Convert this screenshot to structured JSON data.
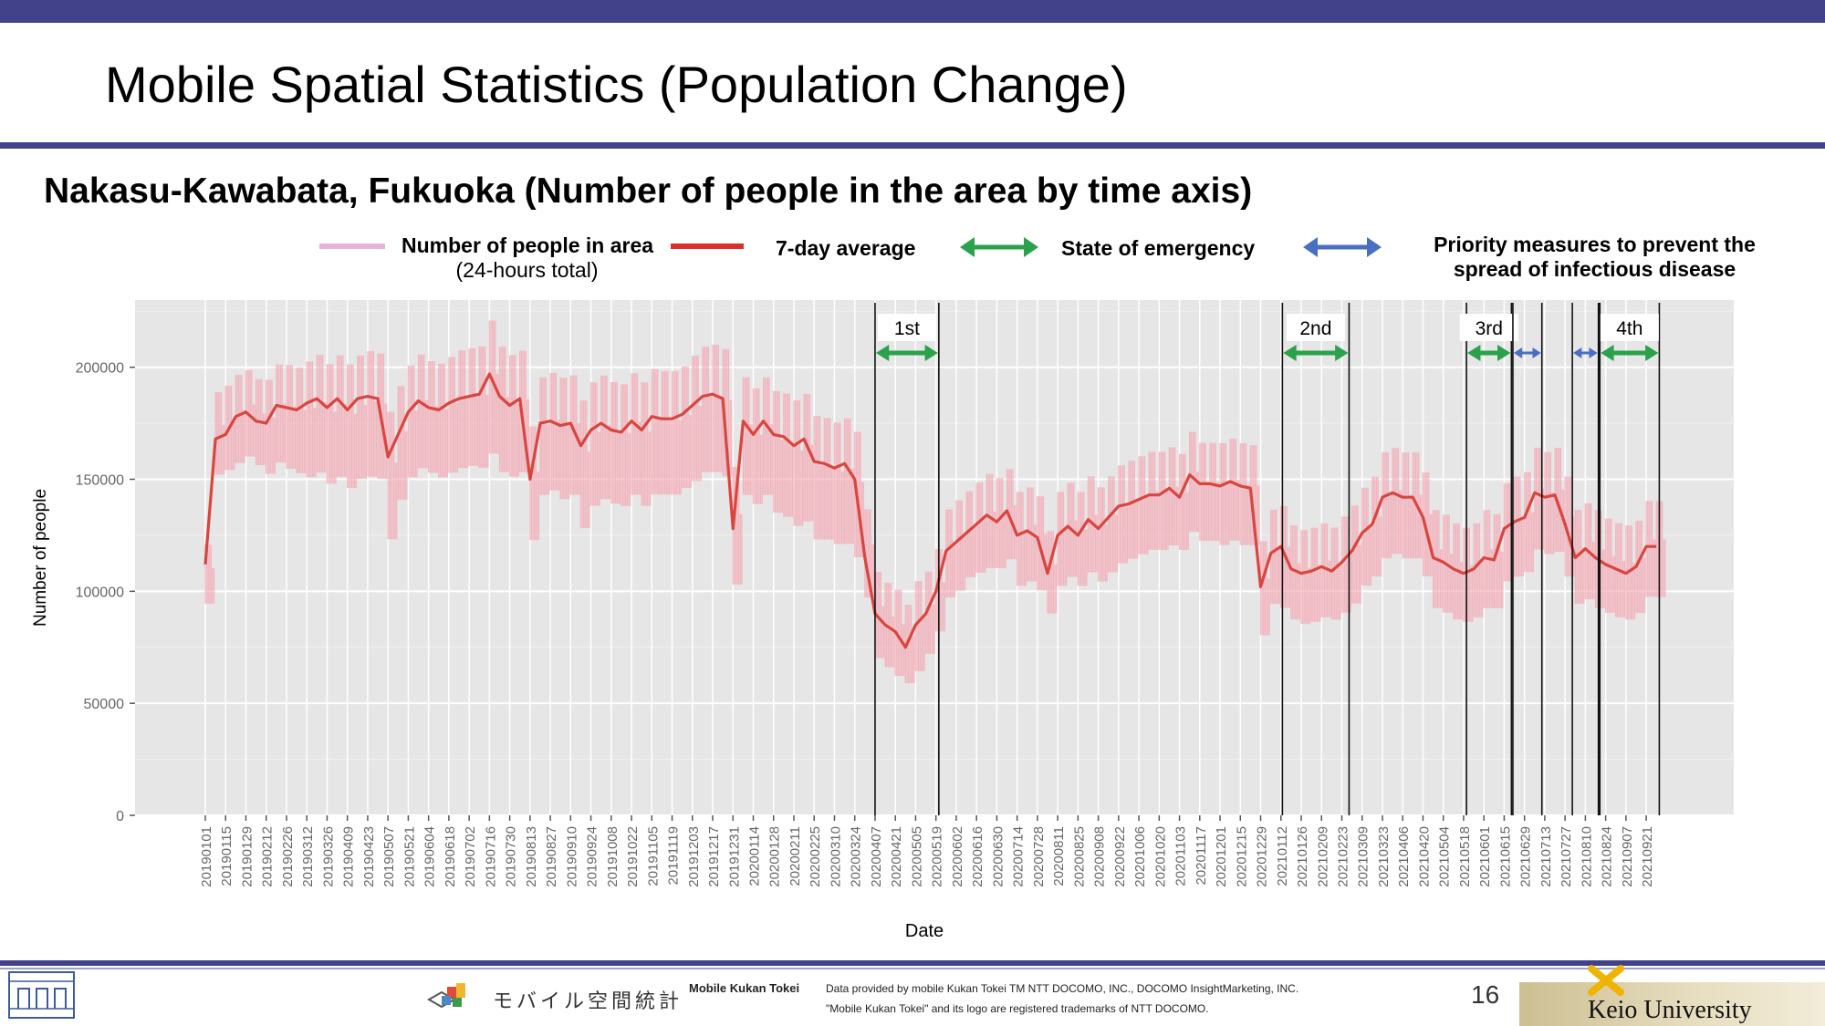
{
  "page": {
    "title": "Mobile Spatial Statistics (Population Change)",
    "subtitle": "Nakasu-Kawabata, Fukuoka (Number of people in the area by time axis)",
    "page_number": "16"
  },
  "legend": {
    "daily_label": "Number of people in area",
    "daily_sublabel": "(24-hours total)",
    "avg_label": "7-day average",
    "emergency_label": "State of emergency",
    "priority_label_1": "Priority measures to prevent the",
    "priority_label_2": "spread of infectious disease"
  },
  "colors": {
    "header_bar": "#414289",
    "daily_series": "#f4a9b5",
    "avg_series": "#d9453f",
    "emergency_arrow": "#2aa14a",
    "priority_arrow": "#4a6fc0",
    "plot_background": "#e6e6e6"
  },
  "footer": {
    "logo_jp": "モバイル空間統計",
    "logo_en": "Mobile Kukan Tokei",
    "credit_1": "Data provided by mobile Kukan Tokei TM NTT DOCOMO, INC., DOCOMO InsightMarketing, INC.",
    "credit_2": "\"Mobile Kukan Tokei\" and its logo are registered trademarks of NTT DOCOMO.",
    "university": "Keio University"
  },
  "chart_data": {
    "type": "line",
    "xlabel": "Date",
    "ylabel": "Number of people",
    "ylim": [
      0,
      230000
    ],
    "yticks": [
      0,
      50000,
      100000,
      150000,
      200000
    ],
    "ytick_labels": [
      "0",
      "50000",
      "100000",
      "150000",
      "200000"
    ],
    "grid": true,
    "x_tick_labels": [
      "20190101",
      "20190115",
      "20190129",
      "20190212",
      "20190226",
      "20190312",
      "20190326",
      "20190409",
      "20190423",
      "20190507",
      "20190521",
      "20190604",
      "20190618",
      "20190702",
      "20190716",
      "20190730",
      "20190813",
      "20190827",
      "20190910",
      "20190924",
      "20191008",
      "20191022",
      "20191105",
      "20191119",
      "20191203",
      "20191217",
      "20191231",
      "20200114",
      "20200128",
      "20200211",
      "20200225",
      "20200310",
      "20200324",
      "20200407",
      "20200421",
      "20200505",
      "20200519",
      "20200602",
      "20200616",
      "20200630",
      "20200714",
      "20200728",
      "20200811",
      "20200825",
      "20200908",
      "20200922",
      "20201006",
      "20201020",
      "20201103",
      "20201117",
      "20201201",
      "20201215",
      "20201229",
      "20210112",
      "20210126",
      "20210209",
      "20210223",
      "20210309",
      "20210323",
      "20210406",
      "20210420",
      "20210504",
      "20210518",
      "20210601",
      "20210615",
      "20210629",
      "20210713",
      "20210727",
      "20210810",
      "20210824",
      "20210907",
      "20210921"
    ],
    "series": [
      {
        "name": "7-day average",
        "x": [
          "20190101",
          "20190108",
          "20190115",
          "20190122",
          "20190129",
          "20190205",
          "20190212",
          "20190219",
          "20190226",
          "20190305",
          "20190312",
          "20190319",
          "20190326",
          "20190402",
          "20190409",
          "20190416",
          "20190423",
          "20190430",
          "20190507",
          "20190514",
          "20190521",
          "20190528",
          "20190604",
          "20190611",
          "20190618",
          "20190625",
          "20190702",
          "20190709",
          "20190716",
          "20190723",
          "20190730",
          "20190806",
          "20190813",
          "20190820",
          "20190827",
          "20190903",
          "20190910",
          "20190917",
          "20190924",
          "20191001",
          "20191008",
          "20191015",
          "20191022",
          "20191029",
          "20191105",
          "20191112",
          "20191119",
          "20191126",
          "20191203",
          "20191210",
          "20191217",
          "20191224",
          "20191231",
          "20200107",
          "20200114",
          "20200121",
          "20200128",
          "20200204",
          "20200211",
          "20200218",
          "20200225",
          "20200303",
          "20200310",
          "20200317",
          "20200324",
          "20200331",
          "20200407",
          "20200414",
          "20200421",
          "20200428",
          "20200505",
          "20200512",
          "20200519",
          "20200526",
          "20200602",
          "20200609",
          "20200616",
          "20200623",
          "20200630",
          "20200707",
          "20200714",
          "20200721",
          "20200728",
          "20200804",
          "20200811",
          "20200818",
          "20200825",
          "20200901",
          "20200908",
          "20200915",
          "20200922",
          "20200929",
          "20201006",
          "20201013",
          "20201020",
          "20201027",
          "20201103",
          "20201110",
          "20201117",
          "20201124",
          "20201201",
          "20201208",
          "20201215",
          "20201222",
          "20201229",
          "20210105",
          "20210112",
          "20210119",
          "20210126",
          "20210202",
          "20210209",
          "20210216",
          "20210223",
          "20210302",
          "20210309",
          "20210316",
          "20210323",
          "20210330",
          "20210406",
          "20210413",
          "20210420",
          "20210427",
          "20210504",
          "20210511",
          "20210518",
          "20210525",
          "20210601",
          "20210608",
          "20210615",
          "20210622",
          "20210629",
          "20210706",
          "20210713",
          "20210720",
          "20210727",
          "20210803",
          "20210810",
          "20210817",
          "20210824",
          "20210831",
          "20210907",
          "20210914",
          "20210921",
          "20210928"
        ],
        "values": [
          112000,
          168000,
          170000,
          178000,
          180000,
          176000,
          175000,
          183000,
          182000,
          181000,
          184000,
          186000,
          182000,
          186000,
          181000,
          186000,
          187000,
          186000,
          160000,
          170000,
          180000,
          185000,
          182000,
          181000,
          184000,
          186000,
          187000,
          188000,
          197000,
          187000,
          183000,
          186000,
          150000,
          175000,
          176000,
          174000,
          175000,
          165000,
          172000,
          175000,
          172000,
          171000,
          176000,
          172000,
          178000,
          177000,
          177000,
          179000,
          183000,
          187000,
          188000,
          186000,
          128000,
          176000,
          170000,
          176000,
          170000,
          169000,
          165000,
          168000,
          158000,
          157000,
          155000,
          157000,
          150000,
          115000,
          90000,
          85000,
          82000,
          75000,
          85000,
          90000,
          100000,
          118000,
          122000,
          126000,
          130000,
          134000,
          131000,
          136000,
          125000,
          127000,
          124000,
          108000,
          125000,
          129000,
          125000,
          132000,
          128000,
          133000,
          138000,
          139000,
          141000,
          143000,
          143000,
          146000,
          142000,
          152000,
          148000,
          148000,
          147000,
          149000,
          147000,
          146000,
          102000,
          117000,
          120000,
          110000,
          108000,
          109000,
          111000,
          109000,
          113000,
          118000,
          126000,
          130000,
          142000,
          144000,
          142000,
          142000,
          133000,
          115000,
          113000,
          110000,
          108000,
          110000,
          115000,
          114000,
          128000,
          131000,
          133000,
          144000,
          142000,
          143000,
          130000,
          115000,
          119000,
          115000,
          112000,
          110000,
          108000,
          111000,
          120000,
          120000
        ]
      },
      {
        "name": "Number of people in area",
        "x": [
          "20190101",
          "20190108",
          "20190115",
          "20190122",
          "20190129",
          "20190205",
          "20190212",
          "20190219",
          "20190226",
          "20190305",
          "20190312",
          "20190319",
          "20190326",
          "20190402",
          "20190409",
          "20190416",
          "20190423",
          "20190430",
          "20190507",
          "20190514",
          "20190521",
          "20190528",
          "20190604",
          "20190611",
          "20190618",
          "20190625",
          "20190702",
          "20190709",
          "20190716",
          "20190723",
          "20190730",
          "20190806",
          "20190813",
          "20190820",
          "20190827",
          "20190903",
          "20190910",
          "20190917",
          "20190924",
          "20191001",
          "20191008",
          "20191015",
          "20191022",
          "20191029",
          "20191105",
          "20191112",
          "20191119",
          "20191126",
          "20191203",
          "20191210",
          "20191217",
          "20191224",
          "20191231",
          "20200107",
          "20200114",
          "20200121",
          "20200128",
          "20200204",
          "20200211",
          "20200218",
          "20200225",
          "20200303",
          "20200310",
          "20200317",
          "20200324",
          "20200331",
          "20200407",
          "20200414",
          "20200421",
          "20200428",
          "20200505",
          "20200512",
          "20200519",
          "20200526",
          "20200602",
          "20200609",
          "20200616",
          "20200623",
          "20200630",
          "20200707",
          "20200714",
          "20200721",
          "20200728",
          "20200804",
          "20200811",
          "20200818",
          "20200825",
          "20200901",
          "20200908",
          "20200915",
          "20200922",
          "20200929",
          "20201006",
          "20201013",
          "20201020",
          "20201027",
          "20201103",
          "20201110",
          "20201117",
          "20201124",
          "20201201",
          "20201208",
          "20201215",
          "20201222",
          "20201229",
          "20210105",
          "20210112",
          "20210119",
          "20210126",
          "20210202",
          "20210209",
          "20210216",
          "20210223",
          "20210302",
          "20210309",
          "20210316",
          "20210323",
          "20210330",
          "20210406",
          "20210413",
          "20210420",
          "20210427",
          "20210504",
          "20210511",
          "20210518",
          "20210525",
          "20210601",
          "20210608",
          "20210615",
          "20210622",
          "20210629",
          "20210706",
          "20210713",
          "20210720",
          "20210727",
          "20210803",
          "20210810",
          "20210817",
          "20210824",
          "20210831",
          "20210907",
          "20210914",
          "20210921",
          "20210928"
        ],
        "low": [
          93000,
          150000,
          152000,
          155000,
          158000,
          154000,
          150000,
          155000,
          152000,
          150000,
          148000,
          150000,
          145000,
          148000,
          143000,
          147000,
          148000,
          147000,
          120000,
          138000,
          148000,
          152000,
          150000,
          148000,
          150000,
          152000,
          153000,
          152000,
          158000,
          150000,
          148000,
          150000,
          120000,
          140000,
          142000,
          138000,
          140000,
          125000,
          135000,
          138000,
          136000,
          135000,
          140000,
          135000,
          140000,
          140000,
          140000,
          143000,
          146000,
          150000,
          150000,
          148000,
          100000,
          140000,
          136000,
          140000,
          132000,
          130000,
          126000,
          128000,
          120000,
          120000,
          118000,
          118000,
          112000,
          95000,
          68000,
          64000,
          60000,
          57000,
          62000,
          70000,
          80000,
          95000,
          98000,
          104000,
          106000,
          108000,
          108000,
          112000,
          100000,
          102000,
          98000,
          88000,
          100000,
          104000,
          100000,
          106000,
          102000,
          106000,
          110000,
          112000,
          114000,
          116000,
          116000,
          118000,
          116000,
          124000,
          120000,
          120000,
          118000,
          120000,
          118000,
          118000,
          78000,
          92000,
          90000,
          85000,
          83000,
          84000,
          86000,
          85000,
          88000,
          92000,
          100000,
          104000,
          112000,
          114000,
          112000,
          112000,
          104000,
          90000,
          88000,
          85000,
          84000,
          86000,
          90000,
          90000,
          102000,
          104000,
          106000,
          116000,
          114000,
          115000,
          104000,
          92000,
          94000,
          90000,
          88000,
          86000,
          85000,
          88000,
          95000,
          95000
        ],
        "high": [
          123000,
          192000,
          195000,
          200000,
          202000,
          198000,
          198000,
          205000,
          205000,
          204000,
          207000,
          210000,
          206000,
          210000,
          206000,
          210000,
          212000,
          211000,
          185000,
          196000,
          205000,
          210000,
          207000,
          206000,
          209000,
          212000,
          213000,
          214000,
          226000,
          214000,
          210000,
          212000,
          178000,
          200000,
          202000,
          200000,
          201000,
          190000,
          198000,
          201000,
          198000,
          197000,
          202000,
          198000,
          204000,
          203000,
          203000,
          205000,
          210000,
          214000,
          215000,
          213000,
          160000,
          200000,
          195000,
          200000,
          194000,
          193000,
          190000,
          193000,
          183000,
          182000,
          180000,
          182000,
          176000,
          140000,
          112000,
          107000,
          104000,
          97000,
          108000,
          112000,
          122000,
          140000,
          144000,
          148000,
          152000,
          156000,
          154000,
          158000,
          148000,
          150000,
          146000,
          130000,
          148000,
          152000,
          148000,
          155000,
          150000,
          155000,
          160000,
          162000,
          164000,
          166000,
          166000,
          168000,
          165000,
          175000,
          170000,
          170000,
          170000,
          172000,
          170000,
          169000,
          126000,
          140000,
          142000,
          133000,
          131000,
          132000,
          134000,
          132000,
          137000,
          142000,
          150000,
          155000,
          166000,
          168000,
          166000,
          166000,
          157000,
          140000,
          138000,
          134000,
          132000,
          134000,
          140000,
          138000,
          152000,
          155000,
          157000,
          168000,
          166000,
          168000,
          155000,
          140000,
          143000,
          140000,
          136000,
          134000,
          133000,
          135000,
          144000,
          144000
        ]
      }
    ],
    "annotations": [
      {
        "label": "1st",
        "type": "State of emergency",
        "start": "20200407",
        "end": "20200521"
      },
      {
        "label": "2nd",
        "type": "State of emergency",
        "start": "20210113",
        "end": "20210228"
      },
      {
        "label": "3rd",
        "type": "State of emergency",
        "start": "20210520",
        "end": "20210620"
      },
      {
        "label": "",
        "type": "Priority measures to prevent the spread of infectious disease",
        "start": "20210621",
        "end": "20210711"
      },
      {
        "label": "",
        "type": "Priority measures to prevent the spread of infectious disease",
        "start": "20210801",
        "end": "20210819"
      },
      {
        "label": "4th",
        "type": "State of emergency",
        "start": "20210820",
        "end": "20210930"
      }
    ]
  }
}
